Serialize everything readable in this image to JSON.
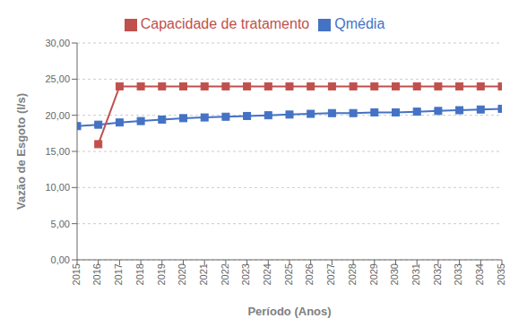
{
  "chart_data": {
    "type": "line",
    "xlabel": "Período (Anos)",
    "ylabel": "Vazão de Esgoto (l/s)",
    "x": [
      2015,
      2016,
      2017,
      2018,
      2019,
      2020,
      2021,
      2022,
      2023,
      2024,
      2025,
      2026,
      2027,
      2028,
      2029,
      2030,
      2031,
      2032,
      2033,
      2034,
      2035
    ],
    "series": [
      {
        "name": "Qmédia",
        "color": "#4472C4",
        "marker": "square",
        "values": [
          18.5,
          18.7,
          19.0,
          19.2,
          19.4,
          19.6,
          19.7,
          19.8,
          19.9,
          20.0,
          20.1,
          20.2,
          20.3,
          20.3,
          20.4,
          20.4,
          20.5,
          20.6,
          20.7,
          20.8,
          20.9
        ]
      },
      {
        "name": "Capacidade de tratamento",
        "color": "#C0504D",
        "marker": "square",
        "values": [
          null,
          16.0,
          24.0,
          24.0,
          24.0,
          24.0,
          24.0,
          24.0,
          24.0,
          24.0,
          24.0,
          24.0,
          24.0,
          24.0,
          24.0,
          24.0,
          24.0,
          24.0,
          24.0,
          24.0,
          24.0
        ]
      }
    ],
    "xlim": [
      2015,
      2035
    ],
    "xticks": [
      2015,
      2016,
      2017,
      2018,
      2019,
      2020,
      2021,
      2022,
      2023,
      2024,
      2025,
      2026,
      2027,
      2028,
      2029,
      2030,
      2031,
      2032,
      2033,
      2034,
      2035
    ],
    "ylim": [
      0,
      30
    ],
    "yticks": [
      {
        "value": 0,
        "label": "0,00"
      },
      {
        "value": 5,
        "label": "5,00"
      },
      {
        "value": 10,
        "label": "10,00"
      },
      {
        "value": 15,
        "label": "15,00"
      },
      {
        "value": 20,
        "label": "20,00"
      },
      {
        "value": 25,
        "label": "25,00"
      },
      {
        "value": 30,
        "label": "30,00"
      }
    ],
    "grid": true,
    "legend": "top"
  }
}
